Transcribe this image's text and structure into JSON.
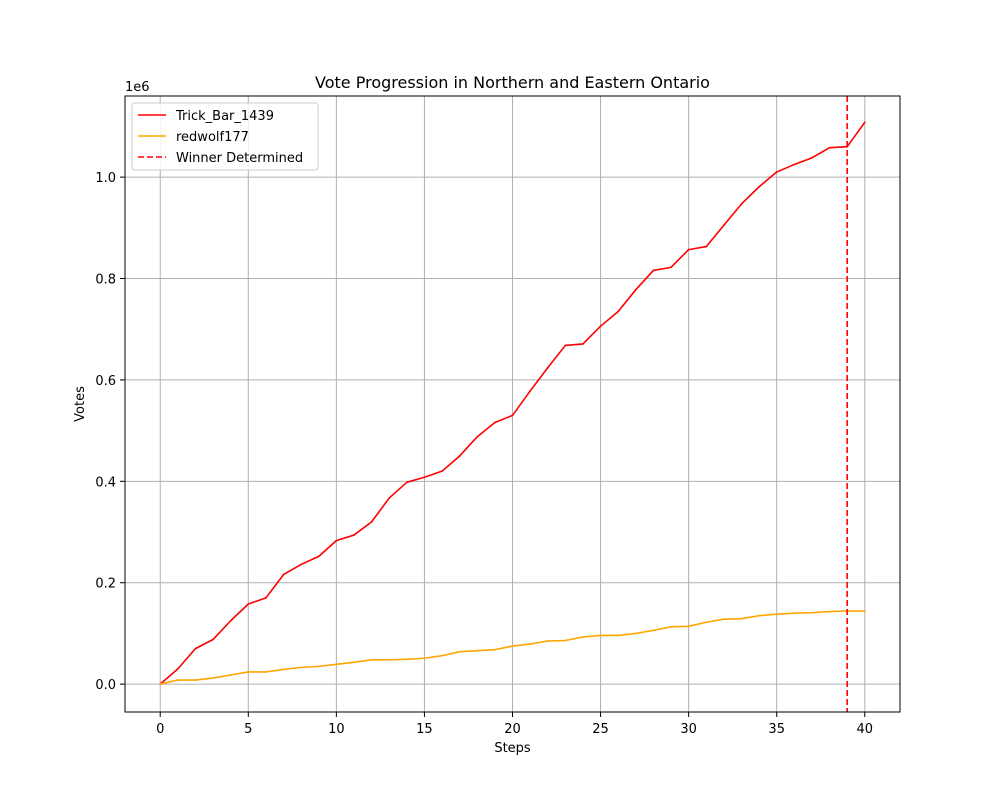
{
  "chart_data": {
    "type": "line",
    "title": "Vote Progression in Northern and Eastern Ontario",
    "xlabel": "Steps",
    "ylabel": "Votes",
    "y_offset_label": "1e6",
    "y_scale": 1000000,
    "xlim": [
      -2,
      42
    ],
    "ylim": [
      -55000,
      1160000
    ],
    "x_ticks": [
      0,
      5,
      10,
      15,
      20,
      25,
      30,
      35,
      40
    ],
    "x_tick_labels": [
      "0",
      "5",
      "10",
      "15",
      "20",
      "25",
      "30",
      "35",
      "40"
    ],
    "y_ticks": [
      0,
      200000,
      400000,
      600000,
      800000,
      1000000
    ],
    "y_tick_labels": [
      "0.0",
      "0.2",
      "0.4",
      "0.6",
      "0.8",
      "1.0"
    ],
    "grid": true,
    "legend_position": "upper left",
    "x": [
      0,
      1,
      2,
      3,
      4,
      5,
      6,
      7,
      8,
      9,
      10,
      11,
      12,
      13,
      14,
      15,
      16,
      17,
      18,
      19,
      20,
      21,
      22,
      23,
      24,
      25,
      26,
      27,
      28,
      29,
      30,
      31,
      32,
      33,
      34,
      35,
      36,
      37,
      38,
      39,
      40
    ],
    "series": [
      {
        "name": "Trick_Bar_1439",
        "color": "#ff0000",
        "style": "solid",
        "values": [
          0,
          30000,
          70000,
          88000,
          125000,
          158000,
          170000,
          216000,
          236000,
          252000,
          283000,
          294000,
          320000,
          367000,
          398000,
          408000,
          420000,
          450000,
          488000,
          516000,
          530000,
          578000,
          624000,
          668000,
          671000,
          706000,
          735000,
          778000,
          816000,
          822000,
          857000,
          863000,
          905000,
          947000,
          981000,
          1010000,
          1025000,
          1038000,
          1058000,
          1060000,
          1108000
        ]
      },
      {
        "name": "redwolf177",
        "color": "#ffa500",
        "style": "solid",
        "values": [
          0,
          8000,
          8000,
          12000,
          18000,
          24000,
          24000,
          29000,
          33000,
          35000,
          39000,
          43000,
          48000,
          48000,
          49000,
          51000,
          56000,
          64000,
          66000,
          68000,
          75000,
          79000,
          85000,
          86000,
          93000,
          96000,
          96000,
          100000,
          106000,
          113000,
          114000,
          122000,
          128000,
          129000,
          135000,
          138000,
          140000,
          141000,
          143000,
          144000,
          144000
        ]
      }
    ],
    "vline": {
      "name": "Winner Determined",
      "x": 39,
      "color": "#ff0000",
      "style": "dashed"
    }
  }
}
